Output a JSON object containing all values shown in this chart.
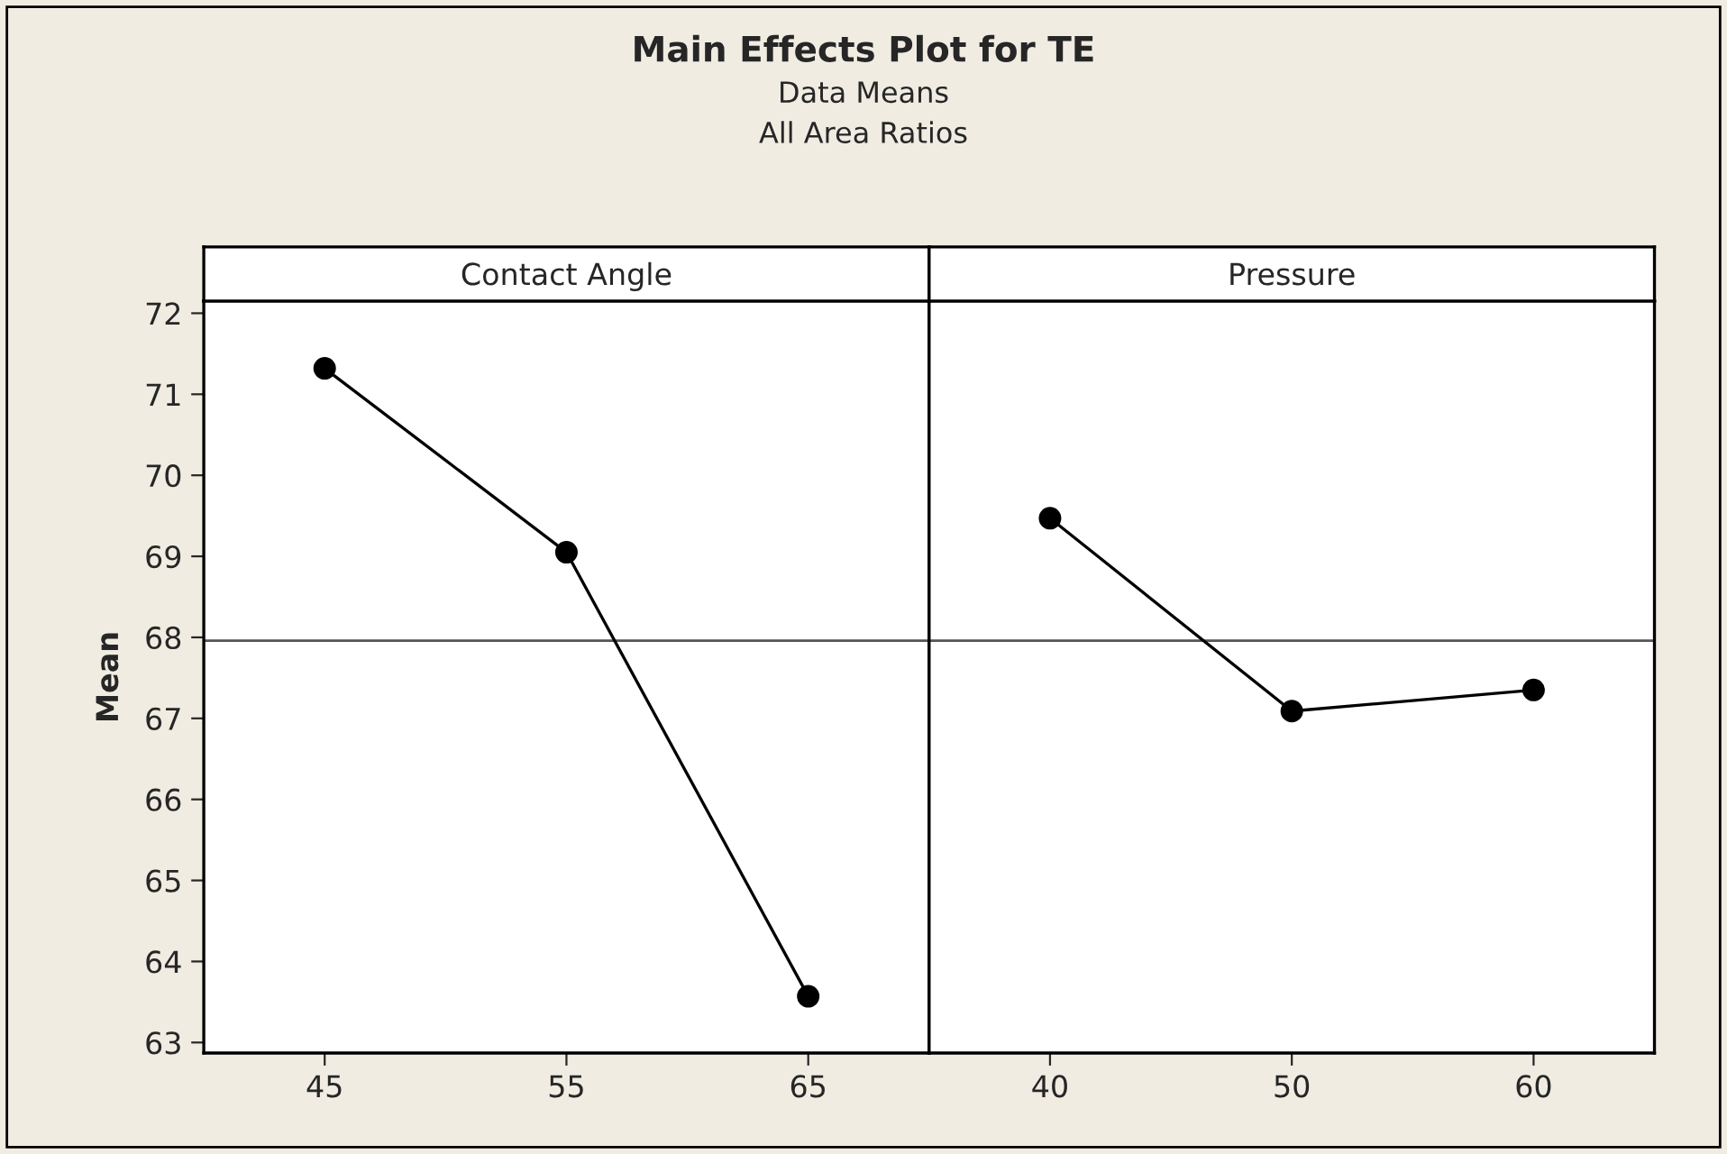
{
  "chart_data": [
    {
      "type": "line",
      "title": "Main Effects Plot for TE",
      "subtitle": "Data Means",
      "annotations": [
        "All Area Ratios"
      ],
      "xlabel": "Contact Angle",
      "ylabel": "Mean",
      "categories": [
        "45",
        "55",
        "65"
      ],
      "series": [
        {
          "color": "#000000",
          "values": [
            71.32,
            69.05,
            63.57
          ]
        }
      ],
      "ylim": [
        62.87,
        72.15
      ],
      "yticks": [
        63,
        64,
        65,
        66,
        67,
        68,
        69,
        70,
        71,
        72
      ],
      "ref_lines": [
        {
          "axis": "y",
          "value": 67.96,
          "color": "#555555"
        }
      ],
      "marker": "circle",
      "grid": false
    },
    {
      "type": "line",
      "xlabel": "Pressure",
      "categories": [
        "40",
        "50",
        "60"
      ],
      "series": [
        {
          "color": "#000000",
          "values": [
            69.47,
            67.09,
            67.35
          ]
        }
      ],
      "ylim": [
        62.87,
        72.15
      ],
      "yticks": [
        63,
        64,
        65,
        66,
        67,
        68,
        69,
        70,
        71,
        72
      ],
      "ref_lines": [
        {
          "axis": "y",
          "value": 67.96,
          "color": "#555555"
        }
      ],
      "marker": "circle",
      "grid": false,
      "tick_labels": "x"
    }
  ]
}
